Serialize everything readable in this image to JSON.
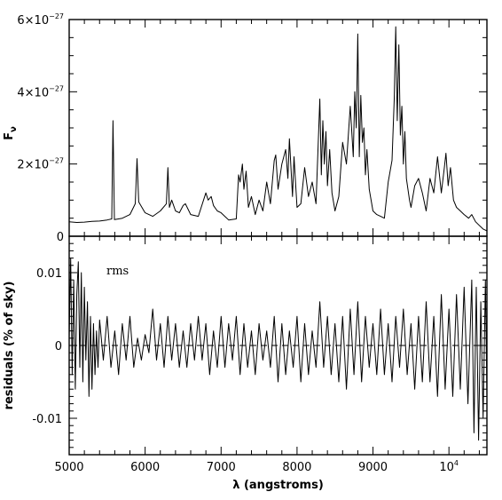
{
  "chart_data": [
    {
      "panel": "top",
      "type": "line",
      "xlim": [
        5000,
        10500
      ],
      "ylim": [
        0,
        6e-27
      ],
      "ylabel": "F",
      "ylabel_sub": "ν",
      "xtick_values": [
        5000,
        6000,
        7000,
        8000,
        9000,
        10000
      ],
      "ytick_values": [
        0,
        2e-27,
        4e-27,
        6e-27
      ],
      "ytick_labels": [
        {
          "text": "0",
          "exp": ""
        },
        {
          "text": "2×10",
          "exp": "−27"
        },
        {
          "text": "4×10",
          "exp": "−27"
        },
        {
          "text": "6×10",
          "exp": "−27"
        }
      ],
      "zero_line": 0,
      "series": [
        {
          "x": [
            5000,
            5100,
            5200,
            5300,
            5400,
            5500,
            5560,
            5577,
            5595,
            5650,
            5700,
            5800,
            5870,
            5893,
            5915,
            6000,
            6100,
            6200,
            6280,
            6300,
            6320,
            6350,
            6400,
            6450,
            6500,
            6530,
            6600,
            6700,
            6800,
            6830,
            6870,
            6900,
            6950,
            7000,
            7100,
            7200,
            7230,
            7250,
            7280,
            7300,
            7330,
            7360,
            7400,
            7450,
            7500,
            7550,
            7600,
            7650,
            7700,
            7720,
            7750,
            7800,
            7850,
            7880,
            7900,
            7940,
            7960,
            8000,
            8050,
            8100,
            8150,
            8200,
            8250,
            8300,
            8320,
            8340,
            8360,
            8380,
            8400,
            8430,
            8460,
            8500,
            8550,
            8600,
            8650,
            8700,
            8740,
            8760,
            8780,
            8800,
            8820,
            8840,
            8860,
            8880,
            8900,
            8920,
            8950,
            9000,
            9050,
            9100,
            9150,
            9200,
            9250,
            9280,
            9300,
            9320,
            9340,
            9360,
            9380,
            9400,
            9420,
            9440,
            9480,
            9500,
            9550,
            9600,
            9650,
            9700,
            9750,
            9800,
            9850,
            9900,
            9940,
            9960,
            9990,
            10020,
            10060,
            10100,
            10150,
            10200,
            10260,
            10300,
            10350,
            10400,
            10450,
            10500
          ],
          "y": [
            4e-28,
            3.8e-28,
            3.9e-28,
            4.1e-28,
            4.2e-28,
            4.5e-28,
            4.8e-28,
            3.2e-27,
            4.6e-28,
            4.8e-28,
            5e-28,
            6e-28,
            9e-28,
            2.15e-27,
            9.5e-28,
            6.5e-28,
            5.5e-28,
            7e-28,
            9e-28,
            1.9e-27,
            8e-28,
            1e-27,
            7e-28,
            6.5e-28,
            8.5e-28,
            9e-28,
            6e-28,
            5.5e-28,
            1.2e-27,
            1e-27,
            1.1e-27,
            8.5e-28,
            7e-28,
            6.5e-28,
            4.5e-28,
            4.8e-28,
            1.7e-27,
            1.5e-27,
            2e-27,
            1.3e-27,
            1.8e-27,
            8e-28,
            1.1e-27,
            6e-28,
            1e-27,
            7e-28,
            1.5e-27,
            9e-28,
            2.1e-27,
            2.25e-27,
            1.3e-27,
            2e-27,
            2.4e-27,
            1.6e-27,
            2.7e-27,
            1.1e-27,
            2.2e-27,
            8e-28,
            9e-28,
            1.9e-27,
            1.1e-27,
            1.5e-27,
            9e-28,
            3.8e-27,
            1.7e-27,
            3.2e-27,
            2e-27,
            2.9e-27,
            1.4e-27,
            2.4e-27,
            1.2e-27,
            7e-28,
            1.1e-27,
            2.6e-27,
            2e-27,
            3.6e-27,
            2.2e-27,
            4e-27,
            3e-27,
            5.6e-27,
            2.2e-27,
            3.9e-27,
            2.6e-27,
            3e-27,
            1.7e-27,
            2.4e-27,
            1.3e-27,
            7e-28,
            6e-28,
            5.5e-28,
            5e-28,
            1.5e-27,
            2.1e-27,
            3.8e-27,
            5.8e-27,
            3.2e-27,
            5.3e-27,
            2.8e-27,
            3.6e-27,
            2e-27,
            2.9e-27,
            1.6e-27,
            1e-27,
            8e-28,
            1.4e-27,
            1.6e-27,
            1.2e-27,
            7e-28,
            1.6e-27,
            1.2e-27,
            2.2e-27,
            1.2e-27,
            1.9e-27,
            2.3e-27,
            1.4e-27,
            1.9e-27,
            1e-27,
            8e-28,
            7e-28,
            6e-28,
            5e-28,
            6e-28,
            4e-28,
            3e-28,
            2e-28,
            1.5e-28
          ]
        }
      ]
    },
    {
      "panel": "bottom",
      "type": "line",
      "xlim": [
        5000,
        10500
      ],
      "ylim": [
        -0.015,
        0.015
      ],
      "xlabel": "λ (angstroms)",
      "ylabel": "residuals (% of sky)",
      "xtick_values": [
        5000,
        6000,
        7000,
        8000,
        9000,
        10000
      ],
      "xtick_labels": [
        {
          "text": "5000",
          "exp": ""
        },
        {
          "text": "6000",
          "exp": ""
        },
        {
          "text": "7000",
          "exp": ""
        },
        {
          "text": "8000",
          "exp": ""
        },
        {
          "text": "9000",
          "exp": ""
        },
        {
          "text": "10",
          "exp": "4"
        }
      ],
      "ytick_values": [
        -0.01,
        0,
        0.01
      ],
      "ytick_labels": [
        "-0.01",
        "0",
        "0.01"
      ],
      "zero_line": 0,
      "annotation": "rms",
      "series": [
        {
          "x": [
            5000,
            5020,
            5040,
            5060,
            5080,
            5100,
            5120,
            5140,
            5160,
            5180,
            5200,
            5220,
            5240,
            5260,
            5280,
            5300,
            5320,
            5340,
            5360,
            5380,
            5400,
            5450,
            5500,
            5550,
            5600,
            5650,
            5700,
            5750,
            5800,
            5850,
            5900,
            5950,
            6000,
            6050,
            6100,
            6150,
            6200,
            6250,
            6300,
            6350,
            6400,
            6450,
            6500,
            6550,
            6600,
            6650,
            6700,
            6750,
            6800,
            6850,
            6900,
            6950,
            7000,
            7050,
            7100,
            7150,
            7200,
            7250,
            7300,
            7350,
            7400,
            7450,
            7500,
            7550,
            7600,
            7650,
            7700,
            7750,
            7800,
            7850,
            7900,
            7950,
            8000,
            8050,
            8100,
            8150,
            8200,
            8250,
            8300,
            8350,
            8400,
            8450,
            8500,
            8550,
            8600,
            8650,
            8700,
            8750,
            8800,
            8850,
            8900,
            8950,
            9000,
            9050,
            9100,
            9150,
            9200,
            9250,
            9300,
            9350,
            9400,
            9450,
            9500,
            9550,
            9600,
            9650,
            9700,
            9750,
            9800,
            9850,
            9900,
            9950,
            10000,
            10050,
            10100,
            10150,
            10200,
            10250,
            10300,
            10330,
            10360,
            10390,
            10420,
            10450,
            10480,
            10500
          ],
          "y": [
            0.001,
            0.012,
            -0.004,
            0.009,
            -0.006,
            0.007,
            0.0115,
            -0.003,
            0.01,
            -0.005,
            0.008,
            -0.002,
            0.006,
            -0.007,
            0.004,
            -0.006,
            0.003,
            -0.004,
            0.002,
            -0.003,
            0.0035,
            -0.002,
            0.004,
            -0.003,
            0.002,
            -0.004,
            0.003,
            -0.002,
            0.004,
            -0.003,
            0.001,
            -0.002,
            0.0015,
            -0.001,
            0.005,
            -0.002,
            0.003,
            -0.003,
            0.004,
            -0.002,
            0.003,
            -0.003,
            0.002,
            -0.003,
            0.003,
            -0.002,
            0.004,
            -0.002,
            0.003,
            -0.004,
            0.002,
            -0.003,
            0.004,
            -0.003,
            0.003,
            -0.002,
            0.004,
            -0.004,
            0.003,
            -0.003,
            0.002,
            -0.004,
            0.003,
            -0.002,
            0.002,
            -0.003,
            0.004,
            -0.005,
            0.003,
            -0.004,
            0.002,
            -0.003,
            0.004,
            -0.005,
            0.003,
            -0.004,
            0.002,
            -0.003,
            0.006,
            -0.003,
            0.004,
            -0.004,
            0.003,
            -0.005,
            0.004,
            -0.006,
            0.005,
            -0.004,
            0.006,
            -0.005,
            0.004,
            -0.003,
            0.003,
            -0.004,
            0.005,
            -0.004,
            0.003,
            -0.005,
            0.004,
            -0.003,
            0.005,
            -0.004,
            0.003,
            -0.006,
            0.004,
            -0.005,
            0.006,
            -0.005,
            0.004,
            -0.007,
            0.007,
            -0.006,
            0.005,
            -0.007,
            0.007,
            -0.006,
            0.008,
            -0.008,
            0.009,
            -0.012,
            0.008,
            -0.013,
            0.006,
            -0.01,
            0.009,
            -0.007
          ]
        }
      ]
    }
  ]
}
